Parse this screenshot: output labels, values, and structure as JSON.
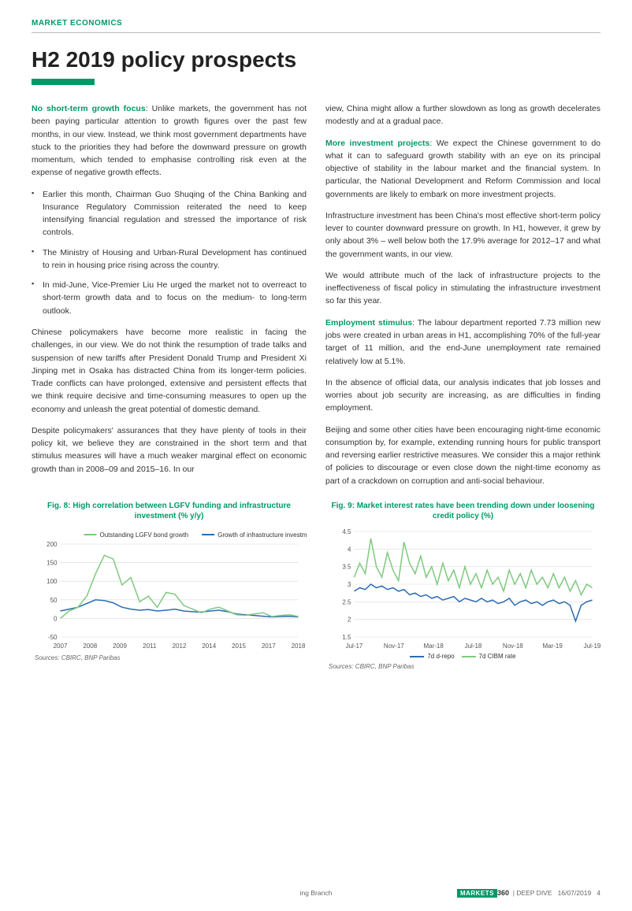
{
  "header": {
    "section": "MARKET ECONOMICS"
  },
  "title": "H2 2019 policy prospects",
  "body": {
    "col1": {
      "p1_lead": "No short-term growth focus",
      "p1": ": Unlike markets, the government has not been paying particular attention to growth figures over the past few months, in our view. Instead, we think most government departments have stuck to the priorities they had before the downward pressure on growth momentum, which tended to emphasise controlling risk even at the expense of negative growth effects.",
      "b1": "Earlier this month, Chairman Guo Shuqing of the China Banking and Insurance Regulatory Commission reiterated the need to keep intensifying financial regulation and stressed the importance of risk controls.",
      "b2": "The Ministry of Housing and Urban-Rural Development has continued to rein in housing price rising across the country.",
      "b3": "In mid-June, Vice-Premier Liu He urged the market not to overreact to short-term growth data and to focus on the medium- to long-term outlook.",
      "p2": "Chinese policymakers have become more realistic in facing the challenges, in our view. We do not think the resumption of trade talks and suspension of new tariffs after President Donald Trump and President Xi Jinping met in Osaka has distracted China from its longer-term policies. Trade conflicts can have prolonged, extensive and persistent effects that we think require decisive and time-consuming measures to open up the economy and unleash the great potential of domestic demand.",
      "p3": "Despite policymakers' assurances that they have plenty of tools in their policy kit, we believe they are constrained in the short term and that stimulus measures will have a much weaker marginal effect on economic growth than in 2008–09 and 2015–16. In our"
    },
    "col2": {
      "p1": "view, China might allow a further slowdown as long as growth decelerates modestly and at a gradual pace.",
      "p2_lead": "More investment projects",
      "p2": ": We expect the Chinese government to do what it can to safeguard growth stability with an eye on its principal objective of stability in the labour market and the financial system. In particular, the National Development and Reform Commission and local governments are likely to embark on more investment projects.",
      "p3": "Infrastructure investment has been China's most effective short-term policy lever to counter downward pressure on growth. In H1, however, it grew by only about 3% – well below both the 17.9% average for 2012–17 and what the government wants, in our view.",
      "p4": "We would attribute much of the lack of infrastructure projects to the ineffectiveness of fiscal policy in stimulating the infrastructure investment so far this year.",
      "p5_lead": "Employment stimulus",
      "p5": ": The labour department reported 7.73 million new jobs were created in urban areas in H1, accomplishing 70% of the full-year target of 11 million, and the end-June unemployment rate remained relatively low at 5.1%.",
      "p6": "In the absence of official data, our analysis indicates that job losses and worries about job security are increasing, as are difficulties in finding employment.",
      "p7": "Beijing and some other cities have been encouraging night-time economic consumption by, for example, extending running hours for public transport and reversing earlier restrictive measures. We consider this a major rethink of policies to discourage or even close down the night-time economy as part of a crackdown on corruption and anti-social behaviour."
    }
  },
  "fig8": {
    "title": "Fig. 8: High correlation between LGFV funding and infrastructure investment (% y/y)",
    "type": "line",
    "legend": [
      "Outstanding LGFV bond growth",
      "Growth of infrastructure investment"
    ],
    "legend_colors": [
      "#7fc97f",
      "#2b6cb0"
    ],
    "ylim": [
      -50,
      200
    ],
    "yticks": [
      -50,
      0,
      50,
      100,
      150,
      200
    ],
    "xticks": [
      "2007",
      "2008",
      "2009",
      "2011",
      "2012",
      "2014",
      "2015",
      "2017",
      "2018"
    ],
    "series1_color": "#7fc97f",
    "series2_color": "#2b6cb0",
    "series1": [
      0,
      20,
      30,
      60,
      120,
      170,
      160,
      90,
      110,
      45,
      60,
      30,
      70,
      65,
      35,
      25,
      15,
      25,
      30,
      20,
      10,
      8,
      12,
      15,
      5,
      8,
      10,
      5
    ],
    "series2": [
      20,
      25,
      30,
      40,
      50,
      48,
      42,
      30,
      25,
      22,
      24,
      20,
      22,
      25,
      20,
      18,
      17,
      20,
      22,
      18,
      12,
      10,
      8,
      6,
      4,
      5,
      6,
      4
    ],
    "source": "Sources: CBIRC, BNP Paribas",
    "grid_color": "#d9d9d9",
    "axis_color": "#888",
    "label_fontsize": 8
  },
  "fig9": {
    "title": "Fig. 9: Market interest rates have been trending down under loosening credit policy (%)",
    "type": "line",
    "legend": [
      "7d d-repo",
      "7d CIBM rate"
    ],
    "legend_colors": [
      "#2b6cb0",
      "#7fc97f"
    ],
    "ylim": [
      1.5,
      4.5
    ],
    "yticks": [
      1.5,
      2.0,
      2.5,
      3.0,
      3.5,
      4.0,
      4.5
    ],
    "xticks": [
      "Jul-17",
      "Nov-17",
      "Mar-18",
      "Jul-18",
      "Nov-18",
      "Mar-19",
      "Jul-19"
    ],
    "series1_color": "#2b6cb0",
    "series2_color": "#7fc97f",
    "series1": [
      2.8,
      2.9,
      2.85,
      3.0,
      2.9,
      2.95,
      2.85,
      2.9,
      2.8,
      2.85,
      2.7,
      2.75,
      2.65,
      2.7,
      2.6,
      2.65,
      2.55,
      2.6,
      2.65,
      2.5,
      2.6,
      2.55,
      2.5,
      2.6,
      2.5,
      2.55,
      2.45,
      2.5,
      2.6,
      2.4,
      2.5,
      2.55,
      2.45,
      2.5,
      2.4,
      2.5,
      2.55,
      2.45,
      2.5,
      2.4,
      1.95,
      2.4,
      2.5,
      2.55
    ],
    "series2": [
      3.2,
      3.6,
      3.3,
      4.3,
      3.5,
      3.2,
      3.9,
      3.4,
      3.1,
      4.2,
      3.6,
      3.3,
      3.8,
      3.2,
      3.5,
      3.0,
      3.6,
      3.1,
      3.4,
      2.9,
      3.5,
      3.0,
      3.3,
      2.9,
      3.4,
      3.0,
      3.2,
      2.8,
      3.4,
      3.0,
      3.3,
      2.9,
      3.4,
      3.0,
      3.2,
      2.9,
      3.3,
      2.9,
      3.2,
      2.8,
      3.1,
      2.7,
      3.0,
      2.9
    ],
    "source": "Sources: CBIRC, BNP Paribas",
    "grid_color": "#d9d9d9",
    "axis_color": "#888",
    "label_fontsize": 8
  },
  "footer": {
    "center": "ing Branch",
    "brand": "MARKETS",
    "brand_num": "360",
    "product": "DEEP DIVE",
    "date": "16/07/2019",
    "page": "4"
  },
  "colors": {
    "accent": "#009966"
  }
}
